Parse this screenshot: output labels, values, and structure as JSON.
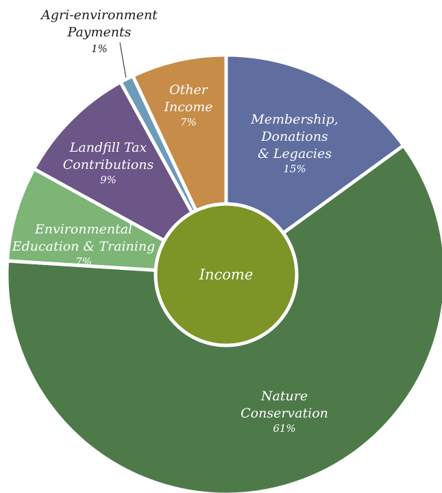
{
  "chart_data": {
    "type": "pie",
    "title": "",
    "center_label": "Income",
    "center_color": "#7d9426",
    "slices": [
      {
        "label": [
          "Membership,",
          "Donations",
          "& Legacies"
        ],
        "percent_label": "15%",
        "value": 15,
        "color": "#5f6e9e",
        "label_style": "inside"
      },
      {
        "label": [
          "Nature",
          "Conservation"
        ],
        "percent_label": "61%",
        "value": 61,
        "color": "#4e7a4a",
        "label_style": "inside"
      },
      {
        "label": [
          "Environmental",
          "Education & Training"
        ],
        "percent_label": "7%",
        "value": 7,
        "color": "#7cb576",
        "label_style": "inside"
      },
      {
        "label": [
          "Landfill Tax",
          "Contributions"
        ],
        "percent_label": "9%",
        "value": 9,
        "color": "#6c5587",
        "label_style": "inside"
      },
      {
        "label": [
          "Agri-environment",
          "Payments"
        ],
        "percent_label": "1%",
        "value": 1,
        "color": "#6e9bb8",
        "label_style": "outside"
      },
      {
        "label": [
          "Other",
          "Income"
        ],
        "percent_label": "7%",
        "value": 7,
        "color": "#c68c48",
        "label_style": "inside"
      }
    ]
  }
}
